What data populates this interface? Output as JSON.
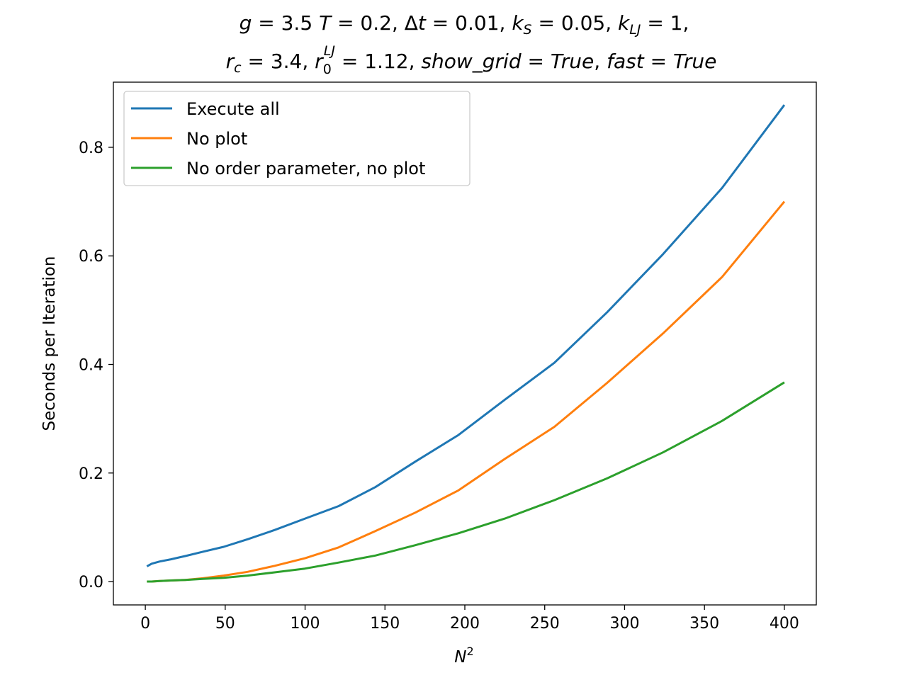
{
  "chart_data": {
    "type": "line",
    "title_line1": "g = 3.5 T = 0.2,  Δt = 0.01,  k_S = 0.05,  k_LJ = 1,",
    "title_line2": "r_c = 3.4,  r_0^LJ = 1.12,  show_grid = True,  fast = True",
    "xlabel": "N²",
    "ylabel": "Seconds per Iteration",
    "xlim": [
      -20,
      420
    ],
    "ylim": [
      -0.043,
      0.92
    ],
    "xticks": [
      0,
      50,
      100,
      150,
      200,
      250,
      300,
      350,
      400
    ],
    "yticks": [
      0.0,
      0.2,
      0.4,
      0.6,
      0.8
    ],
    "grid": false,
    "legend_position": "upper-left",
    "x": [
      1,
      4,
      9,
      16,
      25,
      36,
      49,
      64,
      81,
      100,
      121,
      144,
      169,
      196,
      225,
      256,
      289,
      324,
      361,
      400
    ],
    "series": [
      {
        "name": "Execute all",
        "color": "#1f77b4",
        "values": [
          0.028,
          0.033,
          0.037,
          0.041,
          0.047,
          0.055,
          0.064,
          0.078,
          0.095,
          0.116,
          0.139,
          0.174,
          0.221,
          0.27,
          0.335,
          0.403,
          0.496,
          0.603,
          0.725,
          0.878
        ]
      },
      {
        "name": "No plot",
        "color": "#ff7f0e",
        "values": [
          0.0,
          0.0,
          0.001,
          0.002,
          0.003,
          0.006,
          0.011,
          0.018,
          0.029,
          0.043,
          0.063,
          0.093,
          0.127,
          0.168,
          0.226,
          0.285,
          0.366,
          0.457,
          0.561,
          0.7
        ]
      },
      {
        "name": "No order parameter, no plot",
        "color": "#2ca02c",
        "values": [
          0.0,
          0.0,
          0.001,
          0.002,
          0.003,
          0.005,
          0.007,
          0.011,
          0.017,
          0.024,
          0.035,
          0.048,
          0.067,
          0.089,
          0.116,
          0.15,
          0.19,
          0.238,
          0.296,
          0.367
        ]
      }
    ]
  }
}
